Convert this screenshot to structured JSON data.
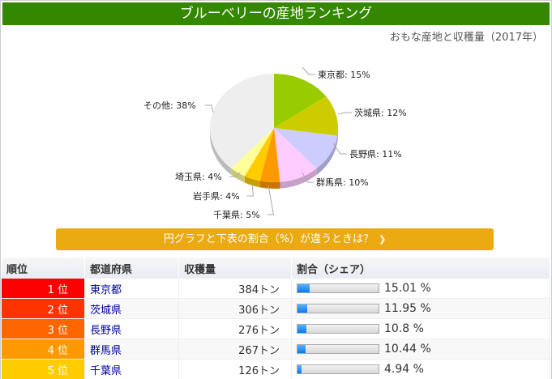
{
  "title": "ブルーベリーの産地ランキング",
  "subtitle": "おもな産地と収穫量（2017年）",
  "chart_data": {
    "type": "pie",
    "slices": [
      {
        "label": "東京都",
        "value": 15,
        "color": "#99cc00"
      },
      {
        "label": "茨城県",
        "value": 12,
        "color": "#cccc00"
      },
      {
        "label": "長野県",
        "value": 11,
        "color": "#ccccff"
      },
      {
        "label": "群馬県",
        "value": 10,
        "color": "#ffccff"
      },
      {
        "label": "千葉県",
        "value": 5,
        "color": "#ff9900"
      },
      {
        "label": "岩手県",
        "value": 4,
        "color": "#ffcc00"
      },
      {
        "label": "埼玉県",
        "value": 4,
        "color": "#ffff99"
      },
      {
        "label": "その他",
        "value": 38,
        "color": "#eeeeee"
      }
    ],
    "label_texts": [
      "東京都: 15%",
      "茨城県: 12%",
      "長野県: 11%",
      "群馬県: 10%",
      "千葉県: 5%",
      "岩手県: 4%",
      "埼玉県: 4%",
      "その他: 38%"
    ]
  },
  "toggle_button": {
    "label": "円グラフと下表の割合（%）が違うときは？",
    "icon": "chevron-down-icon"
  },
  "table": {
    "headers": [
      "順位",
      "都道府県",
      "収穫量",
      "割合（シェア）"
    ],
    "rows": [
      {
        "rank": "1 位",
        "pref": "東京都",
        "amount": "384トン",
        "share": 15.01,
        "share_label": "15.01 %",
        "color": "#ff0000"
      },
      {
        "rank": "2 位",
        "pref": "茨城県",
        "amount": "306トン",
        "share": 11.95,
        "share_label": "11.95 %",
        "color": "#ff3300"
      },
      {
        "rank": "3 位",
        "pref": "長野県",
        "amount": "276トン",
        "share": 10.8,
        "share_label": "10.8 %",
        "color": "#ff6600"
      },
      {
        "rank": "4 位",
        "pref": "群馬県",
        "amount": "267トン",
        "share": 10.44,
        "share_label": "10.44 %",
        "color": "#ff9900"
      },
      {
        "rank": "5 位",
        "pref": "千葉県",
        "amount": "126トン",
        "share": 4.94,
        "share_label": "4.94 %",
        "color": "#ffcc00"
      }
    ]
  }
}
